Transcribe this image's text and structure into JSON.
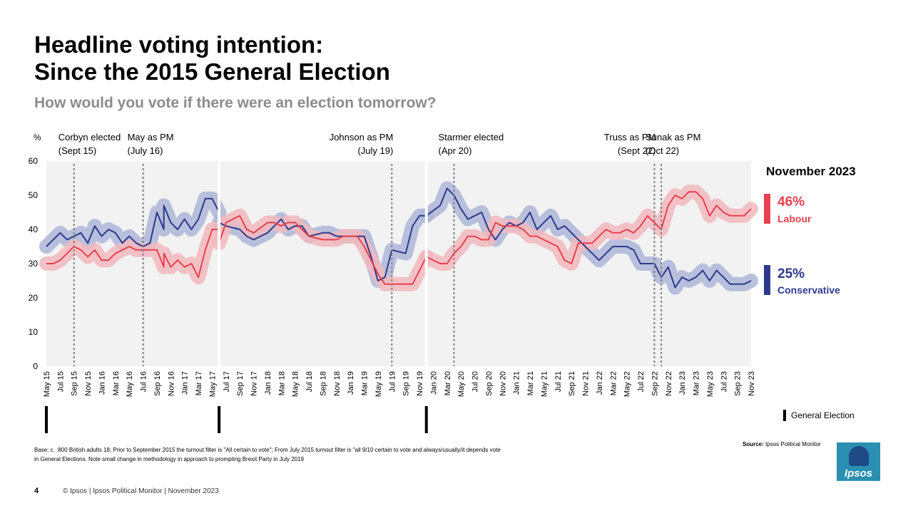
{
  "title_line1": "Headline voting intention:",
  "title_line2": "Since the 2015 General Election",
  "subtitle": "How would you vote if there were an election tomorrow?",
  "latest": {
    "period": "November 2023",
    "labour_value": "46%",
    "labour_label": "Labour",
    "conservative_value": "25%",
    "conservative_label": "Conservative"
  },
  "ge_legend_label": "General Election",
  "base_text_line1": "Base: c. :800 British adults 18; Prior to September 2015 the turnout filter is \"All certain to vote\"; From July 2015 turnout filter is \"all  9/10 certain to vote and always/usually/it depends vote",
  "base_text_line2": "in General Elections.  Note small change in methodology in approach to prompting Brexit Party in July 2019",
  "source_label": "Source:",
  "source_text": "Ipsos Political Monitor",
  "page_number": "4",
  "footer": "© Ipsos | Ipsos Political Monitor | November 2023",
  "logo_text": "Ipsos",
  "colors": {
    "labour": "#e8414f",
    "labour_band": "#f2b8bd",
    "conservative": "#2d3a8c",
    "conservative_band": "#aeb6d8",
    "plot_bg": "#f2f2f2"
  },
  "chart_data": {
    "type": "line",
    "ylabel": "%",
    "ylim": [
      0,
      60
    ],
    "yticks": [
      0,
      10,
      20,
      30,
      40,
      50,
      60
    ],
    "grid": false,
    "x_start": "May 15",
    "x_end": "Nov 23",
    "xticks": [
      "May 15",
      "Jul 15",
      "Sep 15",
      "Nov 15",
      "Jan 16",
      "Mar 16",
      "May 16",
      "Jul 16",
      "Sep 16",
      "Nov 16",
      "Jan 17",
      "Mar 17",
      "May 17",
      "Jul 17",
      "Sep 17",
      "Nov 17",
      "Jan 18",
      "Mar 18",
      "May 18",
      "Jul 18",
      "Sep 18",
      "Nov 18",
      "Jan 19",
      "Mar 19",
      "May 19",
      "Jul 19",
      "Sep 19",
      "Nov 19",
      "Jan 20",
      "Mar 20",
      "May 20",
      "Jul 20",
      "Sep 20",
      "Nov 20",
      "Jan 21",
      "Mar 21",
      "May 21",
      "Jul 21",
      "Sep 21",
      "Nov 21",
      "Jan 22",
      "Mar 22",
      "May 22",
      "Jul 22",
      "Sep 22",
      "Nov 22",
      "Jan 23",
      "Mar 23",
      "May 23",
      "Jul 23",
      "Sep 23",
      "Nov 23"
    ],
    "general_elections": [
      "May 15",
      "Jun 17",
      "Dec 19"
    ],
    "events": [
      {
        "line1": "Corbyn elected",
        "line2": "(Sept 15)",
        "date": "Sep 15",
        "align": "left"
      },
      {
        "line1": "May as PM",
        "line2": "(July 16)",
        "date": "Jul 16",
        "align": "left"
      },
      {
        "line1": "Johnson as PM",
        "line2": "(July 19)",
        "date": "Jul 19",
        "align": "right"
      },
      {
        "line1": "Starmer elected",
        "line2": "(Apr 20)",
        "date": "Apr 20",
        "align": "left"
      },
      {
        "line1": "Truss as PM",
        "line2": "(Sept 22)",
        "date": "Sep 22",
        "align": "right"
      },
      {
        "line1": "Sunak as PM",
        "line2": "(Oct 22)",
        "date": "Oct 22",
        "align": "left"
      }
    ],
    "series": [
      {
        "name": "Conservative",
        "points": [
          [
            "May 15",
            35
          ],
          [
            "Jun 15",
            37
          ],
          [
            "Jul 15",
            39
          ],
          [
            "Aug 15",
            37
          ],
          [
            "Sep 15",
            38
          ],
          [
            "Oct 15",
            39
          ],
          [
            "Nov 15",
            36
          ],
          [
            "Dec 15",
            41
          ],
          [
            "Jan 16",
            38
          ],
          [
            "Feb 16",
            40
          ],
          [
            "Mar 16",
            39
          ],
          [
            "Apr 16",
            36
          ],
          [
            "May 16",
            38
          ],
          [
            "Jun 16",
            36
          ],
          [
            "Jul 16",
            35
          ],
          [
            "Aug 16",
            36
          ],
          [
            "Sep 16",
            45
          ],
          [
            "Oct 16",
            40
          ],
          [
            "Oct 16",
            47
          ],
          [
            "Nov 16",
            42
          ],
          [
            "Dec 16",
            40
          ],
          [
            "Jan 17",
            43
          ],
          [
            "Feb 17",
            40
          ],
          [
            "Mar 17",
            43
          ],
          [
            "Apr 17",
            49
          ],
          [
            "May 17",
            49
          ],
          [
            "Jun 17",
            45
          ],
          [
            "Jun 17",
            42
          ],
          [
            "Jul 17",
            41
          ],
          [
            "Sep 17",
            40
          ],
          [
            "Oct 17",
            38
          ],
          [
            "Nov 17",
            37
          ],
          [
            "Jan 18",
            39
          ],
          [
            "Feb 18",
            41
          ],
          [
            "Mar 18",
            43
          ],
          [
            "Apr 18",
            40
          ],
          [
            "May 18",
            41
          ],
          [
            "Jun 18",
            41
          ],
          [
            "Jul 18",
            38
          ],
          [
            "Sep 18",
            39
          ],
          [
            "Oct 18",
            39
          ],
          [
            "Nov 18",
            38
          ],
          [
            "Dec 18",
            38
          ],
          [
            "Jan 19",
            38
          ],
          [
            "Feb 19",
            38
          ],
          [
            "Mar 19",
            38
          ],
          [
            "Apr 19",
            32
          ],
          [
            "May 19",
            25
          ],
          [
            "Jun 19",
            26
          ],
          [
            "Jul 19",
            34
          ],
          [
            "Sep 19",
            33
          ],
          [
            "Oct 19",
            41
          ],
          [
            "Nov 19",
            44
          ],
          [
            "Dec 19",
            44
          ],
          [
            "Dec 19",
            44
          ],
          [
            "Feb 20",
            47
          ],
          [
            "Mar 20",
            52
          ],
          [
            "Apr 20",
            50
          ],
          [
            "May 20",
            46
          ],
          [
            "Jun 20",
            43
          ],
          [
            "Jul 20",
            44
          ],
          [
            "Aug 20",
            45
          ],
          [
            "Sep 20",
            40
          ],
          [
            "Oct 20",
            37
          ],
          [
            "Nov 20",
            40
          ],
          [
            "Dec 20",
            42
          ],
          [
            "Jan 21",
            41
          ],
          [
            "Feb 21",
            42
          ],
          [
            "Mar 21",
            45
          ],
          [
            "Apr 21",
            40
          ],
          [
            "May 21",
            42
          ],
          [
            "Jun 21",
            44
          ],
          [
            "Jul 21",
            40
          ],
          [
            "Aug 21",
            41
          ],
          [
            "Sep 21",
            39
          ],
          [
            "Oct 21",
            37
          ],
          [
            "Nov 21",
            35
          ],
          [
            "Dec 21",
            33
          ],
          [
            "Jan 22",
            31
          ],
          [
            "Feb 22",
            33
          ],
          [
            "Mar 22",
            35
          ],
          [
            "Apr 22",
            35
          ],
          [
            "May 22",
            35
          ],
          [
            "Jun 22",
            34
          ],
          [
            "Jul 22",
            30
          ],
          [
            "Aug 22",
            30
          ],
          [
            "Sep 22",
            30
          ],
          [
            "Oct 22",
            26
          ],
          [
            "Nov 22",
            29
          ],
          [
            "Dec 22",
            23
          ],
          [
            "Jan 23",
            26
          ],
          [
            "Feb 23",
            25
          ],
          [
            "Mar 23",
            26
          ],
          [
            "Apr 23",
            28
          ],
          [
            "May 23",
            25
          ],
          [
            "Jun 23",
            28
          ],
          [
            "Jul 23",
            26
          ],
          [
            "Aug 23",
            24
          ],
          [
            "Sep 23",
            24
          ],
          [
            "Oct 23",
            24
          ],
          [
            "Nov 23",
            25
          ]
        ]
      },
      {
        "name": "Labour",
        "points": [
          [
            "May 15",
            30
          ],
          [
            "Jun 15",
            30
          ],
          [
            "Jul 15",
            31
          ],
          [
            "Aug 15",
            33
          ],
          [
            "Sep 15",
            35
          ],
          [
            "Oct 15",
            34
          ],
          [
            "Nov 15",
            32
          ],
          [
            "Dec 15",
            34
          ],
          [
            "Jan 16",
            31
          ],
          [
            "Feb 16",
            31
          ],
          [
            "Mar 16",
            33
          ],
          [
            "Apr 16",
            34
          ],
          [
            "May 16",
            35
          ],
          [
            "Jun 16",
            34
          ],
          [
            "Jul 16",
            34
          ],
          [
            "Aug 16",
            34
          ],
          [
            "Sep 16",
            34
          ],
          [
            "Oct 16",
            29
          ],
          [
            "Oct 16",
            33
          ],
          [
            "Nov 16",
            29
          ],
          [
            "Dec 16",
            31
          ],
          [
            "Jan 17",
            29
          ],
          [
            "Feb 17",
            30
          ],
          [
            "Mar 17",
            26
          ],
          [
            "Apr 17",
            34
          ],
          [
            "May 17",
            40
          ],
          [
            "Jun 17",
            40
          ],
          [
            "Jun 17",
            36
          ],
          [
            "Jul 17",
            42
          ],
          [
            "Sep 17",
            44
          ],
          [
            "Oct 17",
            40
          ],
          [
            "Nov 17",
            39
          ],
          [
            "Jan 18",
            42
          ],
          [
            "Feb 18",
            42
          ],
          [
            "Mar 18",
            41
          ],
          [
            "Apr 18",
            42
          ],
          [
            "May 18",
            42
          ],
          [
            "Jun 18",
            40
          ],
          [
            "Jul 18",
            38
          ],
          [
            "Sep 18",
            37
          ],
          [
            "Oct 18",
            37
          ],
          [
            "Nov 18",
            37
          ],
          [
            "Dec 18",
            38
          ],
          [
            "Jan 19",
            38
          ],
          [
            "Feb 19",
            38
          ],
          [
            "Mar 19",
            35
          ],
          [
            "Apr 19",
            31
          ],
          [
            "May 19",
            27
          ],
          [
            "Jun 19",
            24
          ],
          [
            "Jul 19",
            24
          ],
          [
            "Sep 19",
            24
          ],
          [
            "Oct 19",
            24
          ],
          [
            "Nov 19",
            28
          ],
          [
            "Dec 19",
            32
          ],
          [
            "Dec 19",
            32
          ],
          [
            "Feb 20",
            30
          ],
          [
            "Mar 20",
            30
          ],
          [
            "Apr 20",
            33
          ],
          [
            "May 20",
            35
          ],
          [
            "Jun 20",
            38
          ],
          [
            "Jul 20",
            38
          ],
          [
            "Aug 20",
            37
          ],
          [
            "Sep 20",
            37
          ],
          [
            "Oct 20",
            42
          ],
          [
            "Nov 20",
            41
          ],
          [
            "Dec 20",
            41
          ],
          [
            "Jan 21",
            41
          ],
          [
            "Feb 21",
            40
          ],
          [
            "Mar 21",
            38
          ],
          [
            "Apr 21",
            38
          ],
          [
            "May 21",
            37
          ],
          [
            "Jun 21",
            36
          ],
          [
            "Jul 21",
            35
          ],
          [
            "Aug 21",
            31
          ],
          [
            "Sep 21",
            30
          ],
          [
            "Oct 21",
            36
          ],
          [
            "Nov 21",
            36
          ],
          [
            "Dec 21",
            36
          ],
          [
            "Jan 22",
            38
          ],
          [
            "Feb 22",
            40
          ],
          [
            "Mar 22",
            39
          ],
          [
            "Apr 22",
            39
          ],
          [
            "May 22",
            40
          ],
          [
            "Jun 22",
            39
          ],
          [
            "Jul 22",
            41
          ],
          [
            "Aug 22",
            44
          ],
          [
            "Sep 22",
            42
          ],
          [
            "Oct 22",
            40
          ],
          [
            "Nov 22",
            47
          ],
          [
            "Dec 22",
            50
          ],
          [
            "Jan 23",
            49
          ],
          [
            "Feb 23",
            51
          ],
          [
            "Mar 23",
            51
          ],
          [
            "Apr 23",
            49
          ],
          [
            "May 23",
            44
          ],
          [
            "Jun 23",
            47
          ],
          [
            "Jul 23",
            45
          ],
          [
            "Aug 23",
            44
          ],
          [
            "Sep 23",
            44
          ],
          [
            "Oct 23",
            44
          ],
          [
            "Nov 23",
            46
          ]
        ]
      }
    ]
  }
}
